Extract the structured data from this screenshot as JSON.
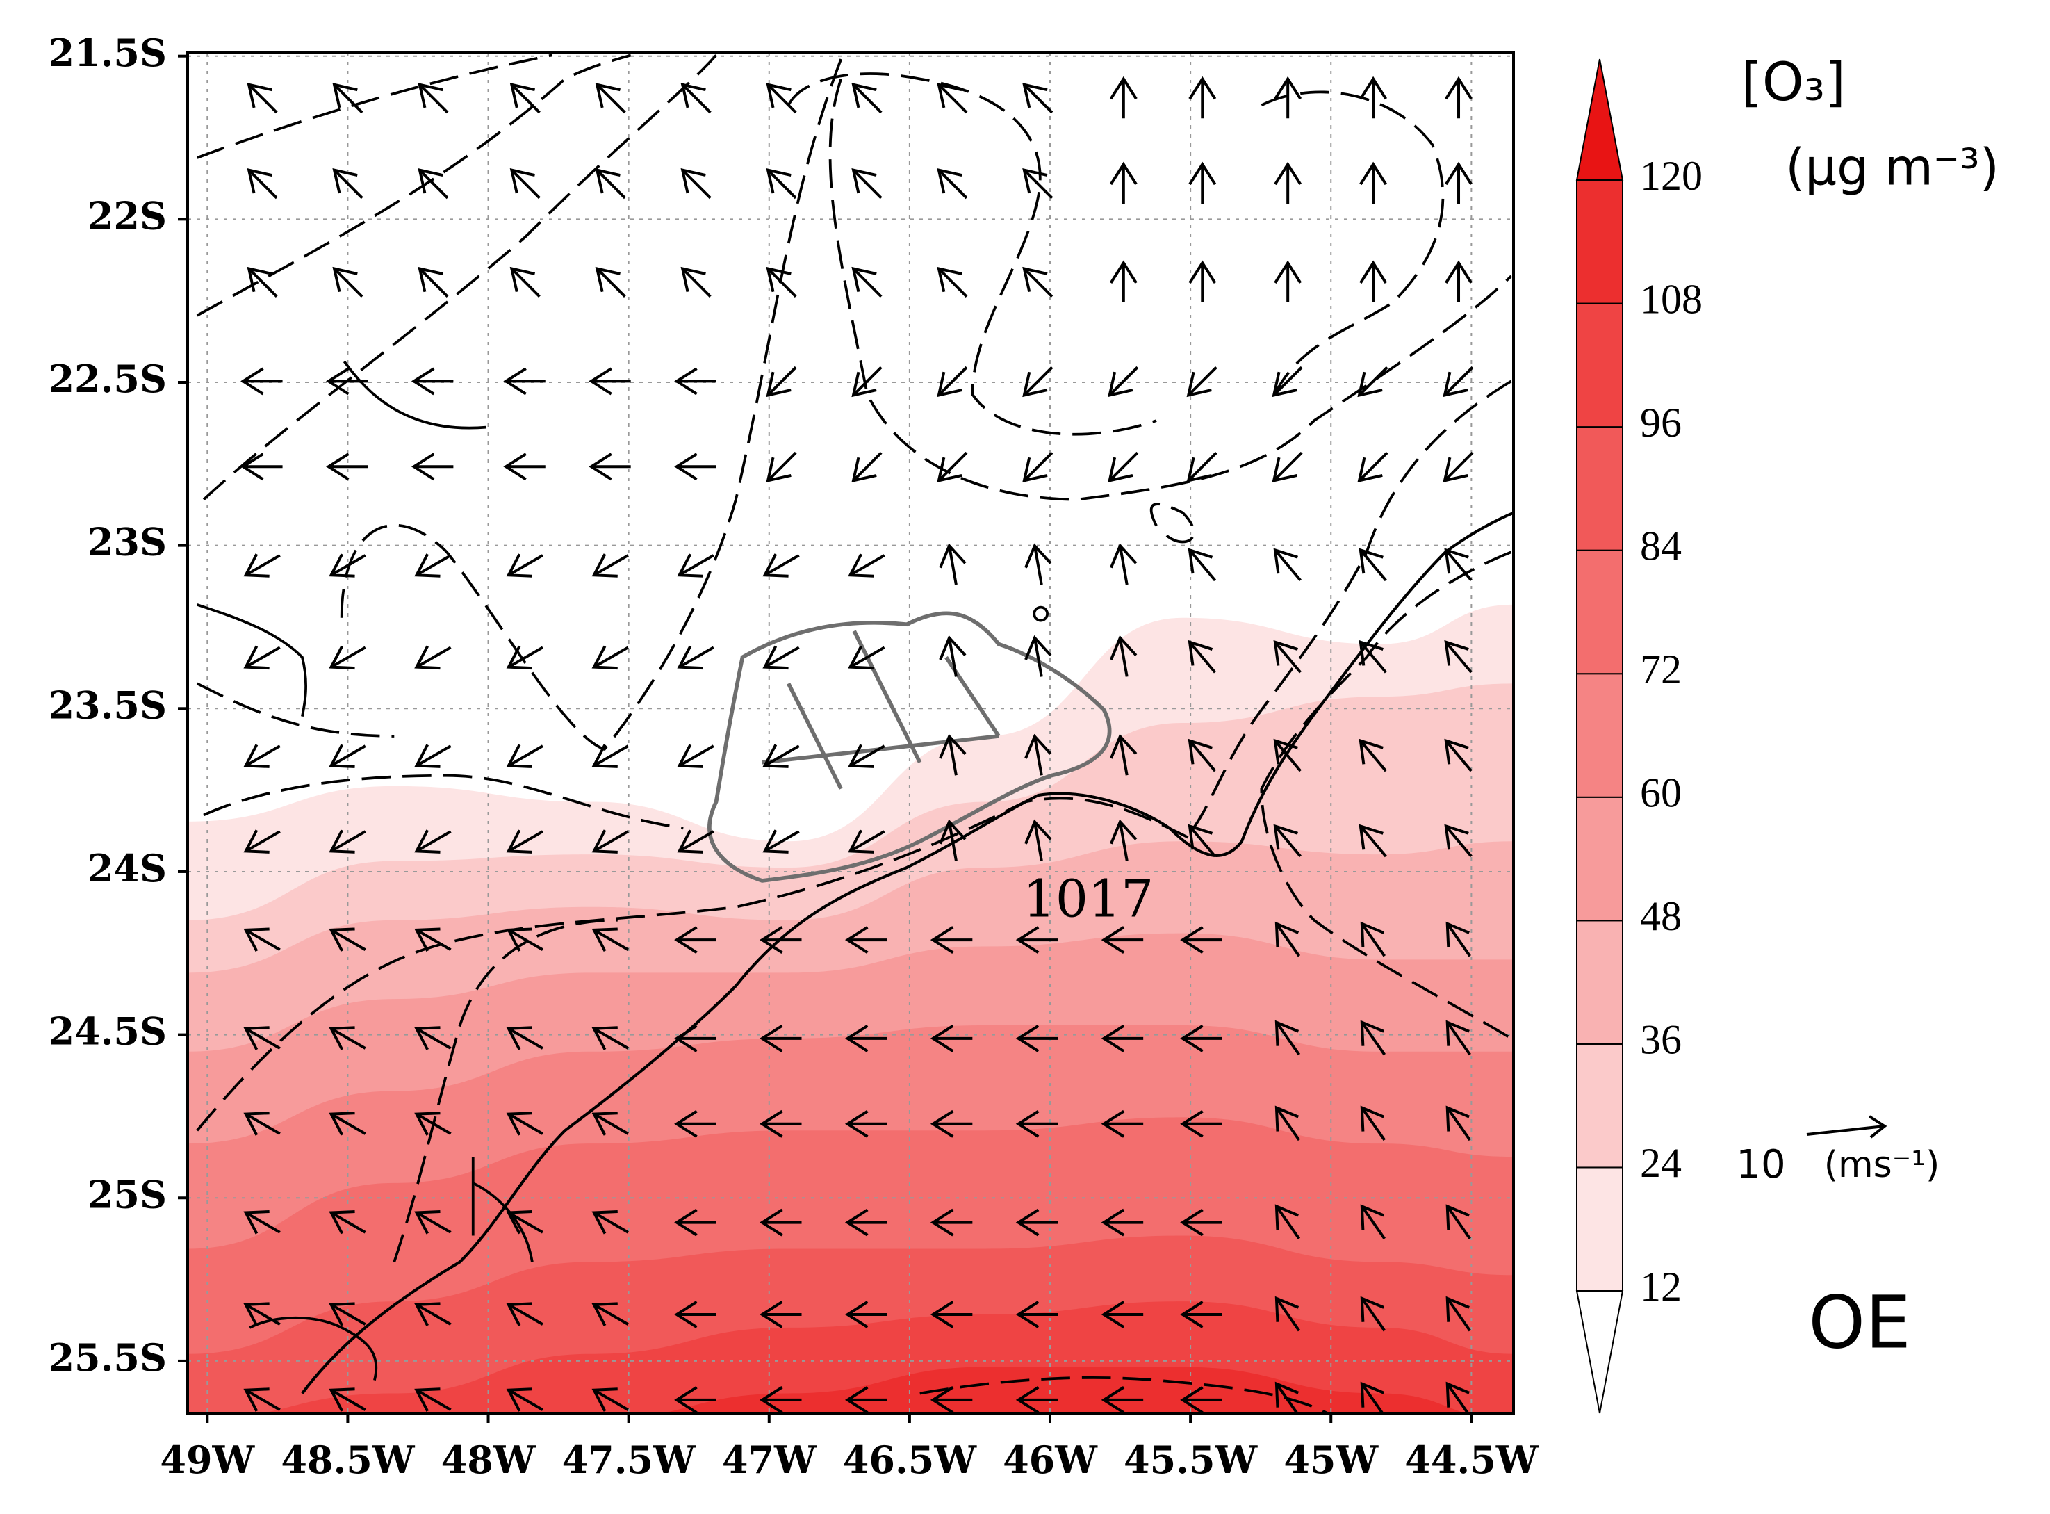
{
  "chart_data": {
    "type": "contour-map",
    "xlim": [
      -49.07,
      -44.35
    ],
    "xticks": [
      {
        "value": -49,
        "label": "49W"
      },
      {
        "value": -48.5,
        "label": "48.5W"
      },
      {
        "value": -48,
        "label": "48W"
      },
      {
        "value": -47.5,
        "label": "47.5W"
      },
      {
        "value": -47,
        "label": "47W"
      },
      {
        "value": -46.5,
        "label": "46.5W"
      },
      {
        "value": -46,
        "label": "46W"
      },
      {
        "value": -45.5,
        "label": "45.5W"
      },
      {
        "value": -45,
        "label": "45W"
      },
      {
        "value": -44.5,
        "label": "44.5W"
      }
    ],
    "ylim": [
      -25.66,
      -21.49
    ],
    "yticks": [
      {
        "value": -21.5,
        "label": "21.5S"
      },
      {
        "value": -22,
        "label": "22S"
      },
      {
        "value": -22.5,
        "label": "22.5S"
      },
      {
        "value": -23,
        "label": "23S"
      },
      {
        "value": -23.5,
        "label": "23.5S"
      },
      {
        "value": -24,
        "label": "24S"
      },
      {
        "value": -24.5,
        "label": "24.5S"
      },
      {
        "value": -25,
        "label": "25S"
      },
      {
        "value": -25.5,
        "label": "25.5S"
      }
    ],
    "grid": true,
    "colorbar": {
      "title": "[O₃]",
      "units": "(μg m⁻³)",
      "levels": [
        12,
        24,
        36,
        48,
        60,
        72,
        84,
        96,
        108,
        120
      ],
      "colors": [
        "#ffffff",
        "#fde4e4",
        "#fbcaca",
        "#f9b2b2",
        "#f79b9b",
        "#f58484",
        "#f36e6e",
        "#f15959",
        "#ef4444",
        "#ec2f2f",
        "#e81414"
      ]
    },
    "vector_scale": {
      "value": 10,
      "units": "(ms⁻¹)"
    },
    "contour_label": 1017,
    "panel_label": "OE"
  }
}
